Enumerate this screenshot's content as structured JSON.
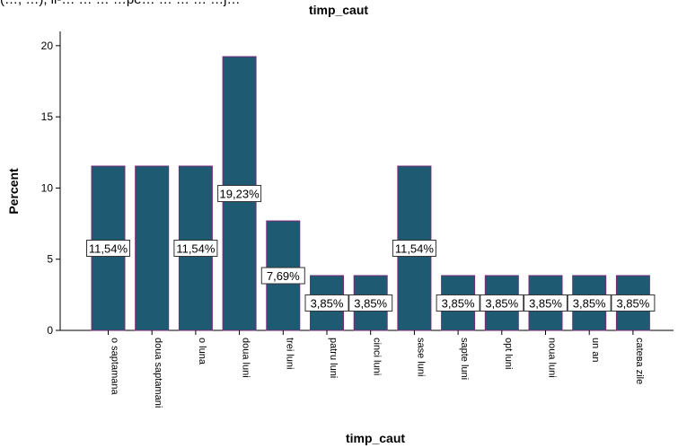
{
  "top_fragment": "(…, …), ii-… … … …pe… … … … …j…",
  "chart_data": {
    "type": "bar",
    "title": "timp_caut",
    "xlabel": "timp_caut",
    "ylabel": "Percent",
    "categories": [
      "o saptamana",
      "doua saptamani",
      "o luna",
      "doua luni",
      "trei luni",
      "patru luni",
      "cinci luni",
      "sase luni",
      "sapte luni",
      "opt luni",
      "noua luni",
      "un an",
      "catева zile"
    ],
    "values": [
      11.54,
      11.54,
      11.54,
      19.23,
      7.69,
      3.85,
      3.85,
      11.54,
      3.85,
      3.85,
      3.85,
      3.85,
      3.85
    ],
    "data_labels": [
      "11,54%",
      "",
      "11,54%",
      "19,23%",
      "7,69%",
      "3,85%",
      "3,85%",
      "11,54%",
      "3,85%",
      "3,85%",
      "3,85%",
      "3,85%",
      "3,85%"
    ],
    "y_ticks": [
      "0",
      "5",
      "10",
      "15",
      "20"
    ],
    "ylim": [
      0,
      21
    ],
    "bar_color": "#1f5a73",
    "bar_outline": "#7a2a7a",
    "grid": false,
    "legend": "none"
  }
}
